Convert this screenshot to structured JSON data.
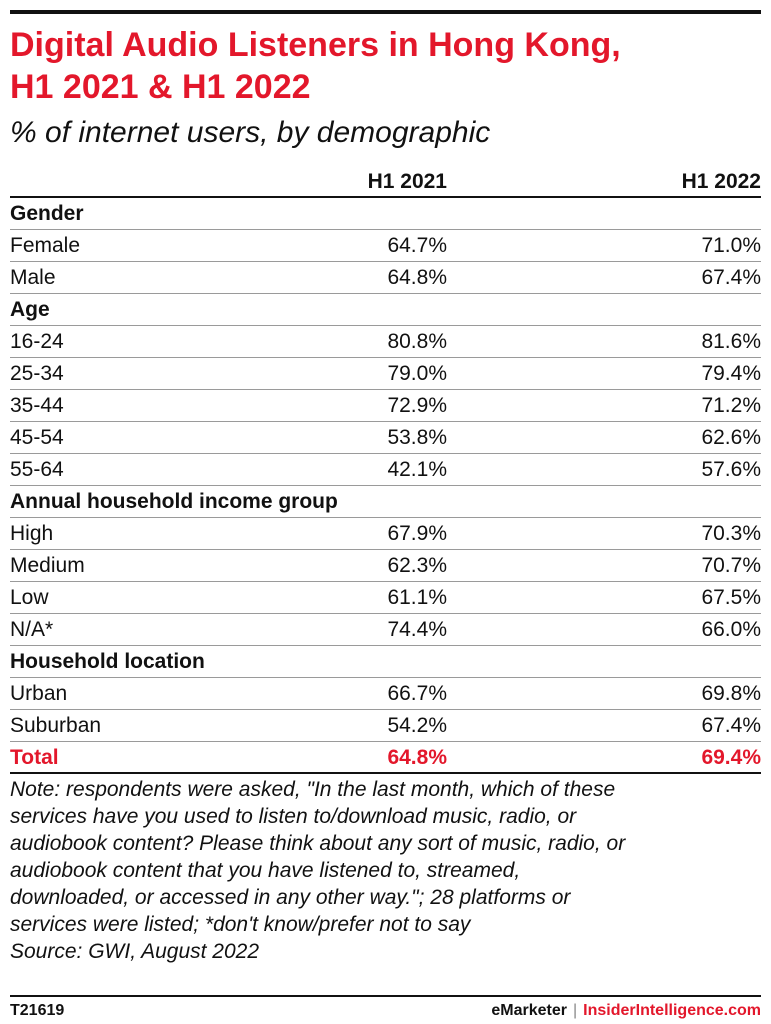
{
  "title_lines": [
    "Digital Audio Listeners in Hong Kong,",
    "H1 2021 & H1 2022"
  ],
  "subtitle": "% of internet users, by demographic",
  "columns": [
    "H1 2021",
    "H1 2022"
  ],
  "sections": [
    {
      "name": "Gender",
      "rows": [
        {
          "label": "Female",
          "v2021": "64.7%",
          "v2022": "71.0%"
        },
        {
          "label": "Male",
          "v2021": "64.8%",
          "v2022": "67.4%"
        }
      ]
    },
    {
      "name": "Age",
      "rows": [
        {
          "label": "16-24",
          "v2021": "80.8%",
          "v2022": "81.6%"
        },
        {
          "label": "25-34",
          "v2021": "79.0%",
          "v2022": "79.4%"
        },
        {
          "label": "35-44",
          "v2021": "72.9%",
          "v2022": "71.2%"
        },
        {
          "label": "45-54",
          "v2021": "53.8%",
          "v2022": "62.6%"
        },
        {
          "label": "55-64",
          "v2021": "42.1%",
          "v2022": "57.6%"
        }
      ]
    },
    {
      "name": "Annual household income group",
      "rows": [
        {
          "label": "High",
          "v2021": "67.9%",
          "v2022": "70.3%"
        },
        {
          "label": "Medium",
          "v2021": "62.3%",
          "v2022": "70.7%"
        },
        {
          "label": "Low",
          "v2021": "61.1%",
          "v2022": "67.5%"
        },
        {
          "label": "N/A*",
          "v2021": "74.4%",
          "v2022": "66.0%"
        }
      ]
    },
    {
      "name": "Household location",
      "rows": [
        {
          "label": "Urban",
          "v2021": "66.7%",
          "v2022": "69.8%"
        },
        {
          "label": "Suburban",
          "v2021": "54.2%",
          "v2022": "67.4%"
        }
      ]
    }
  ],
  "total": {
    "label": "Total",
    "v2021": "64.8%",
    "v2022": "69.4%"
  },
  "note_lines": [
    "Note: respondents were asked, \"In the last month, which of these",
    "services have you used to listen to/download music, radio, or",
    "audiobook content? Please think about any sort of music, radio, or",
    "audiobook content that you have listened to, streamed,",
    "downloaded, or accessed in any other way.\"; 28 platforms or",
    "services were listed; *don't know/prefer not to say",
    "Source: GWI, August 2022"
  ],
  "footer": {
    "code": "T21619",
    "brand_left": "eMarketer",
    "separator": "|",
    "brand_right": "InsiderIntelligence.com"
  },
  "colors": {
    "accent": "#e3172b",
    "text": "#111111",
    "rule": "#9a9a9a"
  },
  "chart_data": {
    "type": "table",
    "title": "Digital Audio Listeners in Hong Kong, H1 2021 & H1 2022",
    "subtitle": "% of internet users, by demographic",
    "categories": [
      "Female",
      "Male",
      "16-24",
      "25-34",
      "35-44",
      "45-54",
      "55-64",
      "High",
      "Medium",
      "Low",
      "N/A*",
      "Urban",
      "Suburban",
      "Total"
    ],
    "series": [
      {
        "name": "H1 2021",
        "values": [
          64.7,
          64.8,
          80.8,
          79.0,
          72.9,
          53.8,
          42.1,
          67.9,
          62.3,
          61.1,
          74.4,
          66.7,
          54.2,
          64.8
        ]
      },
      {
        "name": "H1 2022",
        "values": [
          71.0,
          67.4,
          81.6,
          79.4,
          71.2,
          62.6,
          57.6,
          70.3,
          70.7,
          67.5,
          66.0,
          69.8,
          67.4,
          69.4
        ]
      }
    ]
  }
}
